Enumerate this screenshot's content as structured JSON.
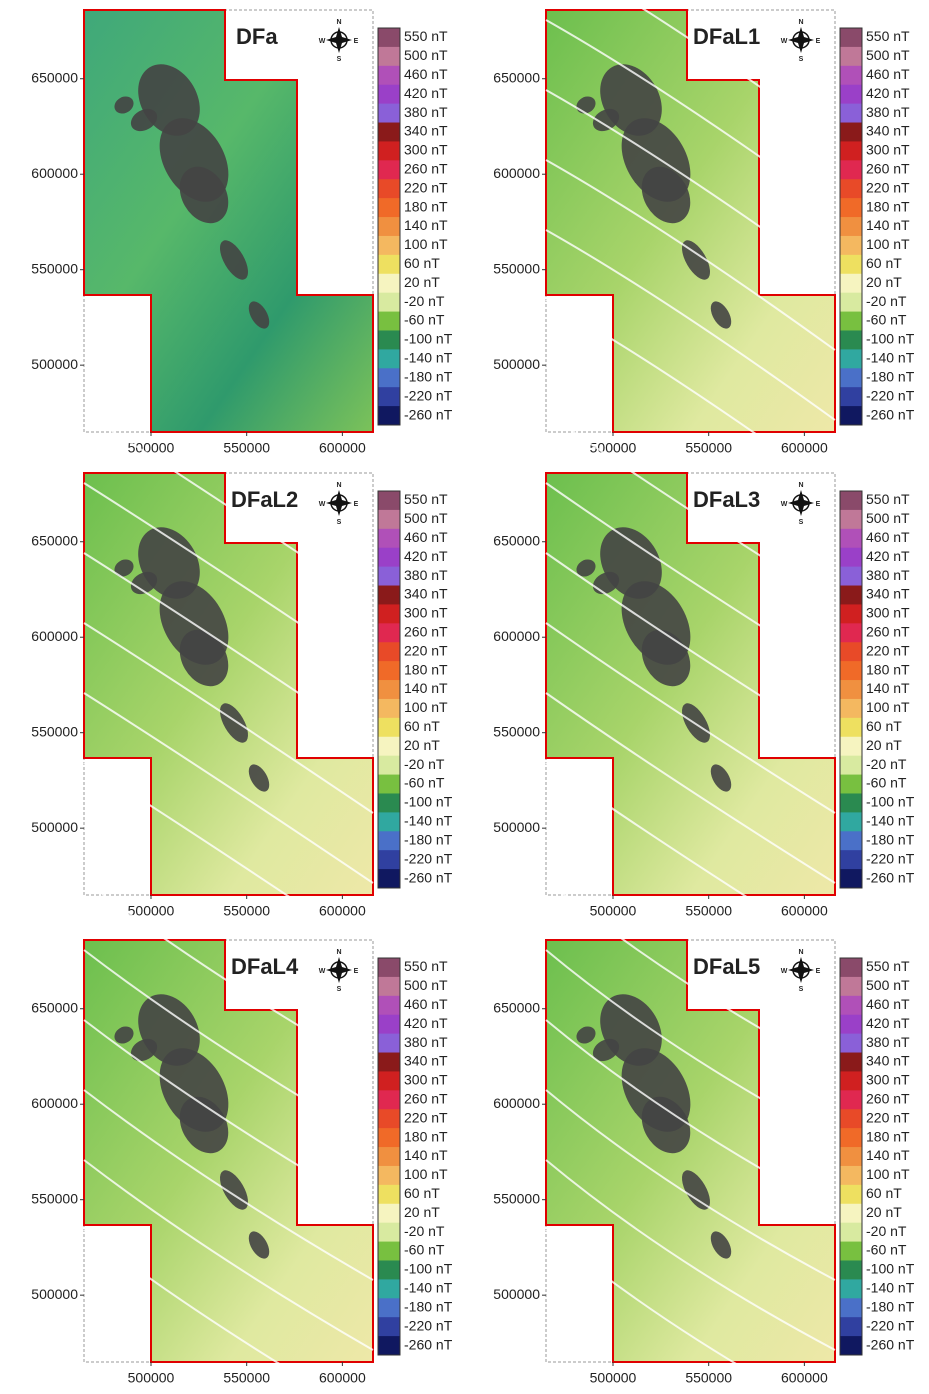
{
  "panels": [
    {
      "title": "DFa",
      "xlim": [
        465000,
        616000
      ],
      "ylim": [
        465000,
        686000
      ],
      "xticks": [
        500000,
        550000,
        600000
      ],
      "yticks": [
        500000,
        550000,
        600000,
        650000
      ],
      "compass": [
        "N",
        "W",
        "E",
        "S"
      ],
      "colorbar": [
        "550 nT",
        "500 nT",
        "460 nT",
        "420 nT",
        "380 nT",
        "340 nT",
        "300 nT",
        "260 nT",
        "220 nT",
        "180 nT",
        "140 nT",
        "100 nT",
        "60 nT",
        "20 nT",
        "-20 nT",
        "-60 nT",
        "-100 nT",
        "-140 nT",
        "-180 nT",
        "-220 nT",
        "-260 nT"
      ]
    },
    {
      "title": "DFaL1",
      "xlim": [
        465000,
        616000
      ],
      "ylim": [
        465000,
        686000
      ],
      "xticks": [
        500000,
        550000,
        600000
      ],
      "yticks": [
        500000,
        550000,
        600000,
        650000
      ],
      "compass": [
        "N",
        "W",
        "E",
        "S"
      ],
      "colorbar": [
        "550 nT",
        "500 nT",
        "460 nT",
        "420 nT",
        "380 nT",
        "340 nT",
        "300 nT",
        "260 nT",
        "220 nT",
        "180 nT",
        "140 nT",
        "100 nT",
        "60 nT",
        "20 nT",
        "-20 nT",
        "-60 nT",
        "-100 nT",
        "-140 nT",
        "-180 nT",
        "-220 nT",
        "-260 nT"
      ]
    },
    {
      "title": "DFaL2",
      "xlim": [
        465000,
        616000
      ],
      "ylim": [
        465000,
        686000
      ],
      "xticks": [
        500000,
        550000,
        600000
      ],
      "yticks": [
        500000,
        550000,
        600000,
        650000
      ],
      "compass": [
        "N",
        "W",
        "E",
        "S"
      ],
      "colorbar": [
        "550 nT",
        "500 nT",
        "460 nT",
        "420 nT",
        "380 nT",
        "340 nT",
        "300 nT",
        "260 nT",
        "220 nT",
        "180 nT",
        "140 nT",
        "100 nT",
        "60 nT",
        "20 nT",
        "-20 nT",
        "-60 nT",
        "-100 nT",
        "-140 nT",
        "-180 nT",
        "-220 nT",
        "-260 nT"
      ]
    },
    {
      "title": "DFaL3",
      "xlim": [
        465000,
        616000
      ],
      "ylim": [
        465000,
        686000
      ],
      "xticks": [
        500000,
        550000,
        600000
      ],
      "yticks": [
        500000,
        550000,
        600000,
        650000
      ],
      "compass": [
        "N",
        "W",
        "E",
        "S"
      ],
      "colorbar": [
        "550 nT",
        "500 nT",
        "460 nT",
        "420 nT",
        "380 nT",
        "340 nT",
        "300 nT",
        "260 nT",
        "220 nT",
        "180 nT",
        "140 nT",
        "100 nT",
        "60 nT",
        "20 nT",
        "-20 nT",
        "-60 nT",
        "-100 nT",
        "-140 nT",
        "-180 nT",
        "-220 nT",
        "-260 nT"
      ]
    },
    {
      "title": "DFaL4",
      "xlim": [
        465000,
        616000
      ],
      "ylim": [
        465000,
        686000
      ],
      "xticks": [
        500000,
        550000,
        600000
      ],
      "yticks": [
        500000,
        550000,
        600000,
        650000
      ],
      "compass": [
        "N",
        "W",
        "E",
        "S"
      ],
      "colorbar": [
        "550 nT",
        "500 nT",
        "460 nT",
        "420 nT",
        "380 nT",
        "340 nT",
        "300 nT",
        "260 nT",
        "220 nT",
        "180 nT",
        "140 nT",
        "100 nT",
        "60 nT",
        "20 nT",
        "-20 nT",
        "-60 nT",
        "-100 nT",
        "-140 nT",
        "-180 nT",
        "-220 nT",
        "-260 nT"
      ]
    },
    {
      "title": "DFaL5",
      "xlim": [
        465000,
        616000
      ],
      "ylim": [
        465000,
        686000
      ],
      "xticks": [
        500000,
        550000,
        600000
      ],
      "yticks": [
        500000,
        550000,
        600000,
        650000
      ],
      "compass": [
        "N",
        "W",
        "E",
        "S"
      ],
      "colorbar": [
        "550 nT",
        "500 nT",
        "460 nT",
        "420 nT",
        "380 nT",
        "340 nT",
        "300 nT",
        "260 nT",
        "220 nT",
        "180 nT",
        "140 nT",
        "100 nT",
        "60 nT",
        "20 nT",
        "-20 nT",
        "-60 nT",
        "-100 nT",
        "-140 nT",
        "-180 nT",
        "-220 nT",
        "-260 nT"
      ]
    }
  ]
}
